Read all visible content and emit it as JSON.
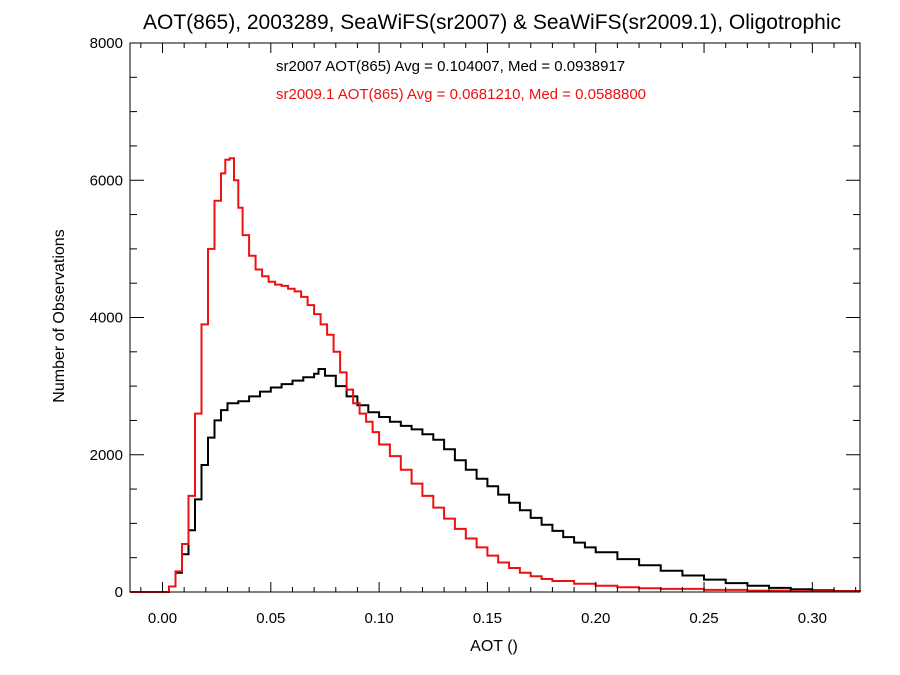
{
  "chart_data": {
    "type": "line",
    "title": "AOT(865), 2003289, SeaWiFS(sr2007) & SeaWiFS(sr2009.1), Oligotrophic",
    "xlabel": "AOT ()",
    "ylabel": "Number of Observations",
    "xlim": [
      -0.015,
      0.322
    ],
    "ylim": [
      0,
      8000
    ],
    "x_ticks": [
      0.0,
      0.05,
      0.1,
      0.15,
      0.2,
      0.25,
      0.3
    ],
    "x_tick_labels": [
      "0.00",
      "0.05",
      "0.10",
      "0.15",
      "0.20",
      "0.25",
      "0.30"
    ],
    "y_ticks": [
      0,
      2000,
      4000,
      6000,
      8000
    ],
    "y_tick_labels": [
      "0",
      "2000",
      "4000",
      "6000",
      "8000"
    ],
    "grid": false,
    "step": true,
    "annotations": [
      {
        "text": "sr2007 AOT(865) Avg = 0.104007, Med = 0.0938917",
        "color": "#000000"
      },
      {
        "text": "sr2009.1 AOT(865) Avg = 0.0681210, Med = 0.0588800",
        "color": "#ee1111"
      }
    ],
    "series": [
      {
        "name": "sr2007",
        "color": "#000000",
        "x": [
          -0.015,
          0.0,
          0.003,
          0.006,
          0.009,
          0.012,
          0.015,
          0.018,
          0.021,
          0.024,
          0.027,
          0.03,
          0.035,
          0.04,
          0.045,
          0.05,
          0.055,
          0.06,
          0.065,
          0.07,
          0.072,
          0.075,
          0.08,
          0.085,
          0.09,
          0.095,
          0.1,
          0.105,
          0.11,
          0.115,
          0.12,
          0.125,
          0.13,
          0.135,
          0.14,
          0.145,
          0.15,
          0.155,
          0.16,
          0.165,
          0.17,
          0.175,
          0.18,
          0.185,
          0.19,
          0.195,
          0.2,
          0.21,
          0.22,
          0.23,
          0.24,
          0.25,
          0.26,
          0.27,
          0.28,
          0.29,
          0.3,
          0.31,
          0.322
        ],
        "y": [
          0,
          0,
          80,
          280,
          550,
          900,
          1350,
          1850,
          2250,
          2500,
          2650,
          2750,
          2780,
          2850,
          2920,
          2980,
          3030,
          3080,
          3130,
          3180,
          3250,
          3150,
          3000,
          2850,
          2720,
          2620,
          2550,
          2480,
          2420,
          2370,
          2300,
          2220,
          2080,
          1920,
          1780,
          1650,
          1540,
          1420,
          1300,
          1190,
          1080,
          980,
          890,
          800,
          720,
          650,
          580,
          480,
          390,
          310,
          240,
          180,
          130,
          90,
          60,
          40,
          25,
          15,
          10
        ]
      },
      {
        "name": "sr2009.1",
        "color": "#ee1111",
        "x": [
          -0.015,
          0.0,
          0.003,
          0.006,
          0.009,
          0.012,
          0.015,
          0.018,
          0.021,
          0.024,
          0.027,
          0.029,
          0.031,
          0.033,
          0.035,
          0.037,
          0.04,
          0.043,
          0.046,
          0.049,
          0.052,
          0.055,
          0.058,
          0.061,
          0.064,
          0.067,
          0.07,
          0.073,
          0.076,
          0.079,
          0.082,
          0.085,
          0.088,
          0.091,
          0.094,
          0.097,
          0.1,
          0.105,
          0.11,
          0.115,
          0.12,
          0.125,
          0.13,
          0.135,
          0.14,
          0.145,
          0.15,
          0.155,
          0.16,
          0.165,
          0.17,
          0.175,
          0.18,
          0.19,
          0.2,
          0.21,
          0.22,
          0.23,
          0.25,
          0.27,
          0.29,
          0.322
        ],
        "y": [
          0,
          0,
          80,
          300,
          700,
          1400,
          2600,
          3900,
          5000,
          5700,
          6100,
          6300,
          6320,
          6000,
          5600,
          5200,
          4900,
          4700,
          4600,
          4520,
          4480,
          4460,
          4420,
          4380,
          4300,
          4180,
          4050,
          3900,
          3750,
          3500,
          3200,
          2950,
          2750,
          2600,
          2480,
          2330,
          2150,
          1980,
          1780,
          1580,
          1400,
          1230,
          1070,
          920,
          780,
          650,
          530,
          430,
          350,
          280,
          230,
          190,
          160,
          120,
          90,
          70,
          55,
          45,
          30,
          20,
          12,
          8
        ]
      }
    ]
  }
}
